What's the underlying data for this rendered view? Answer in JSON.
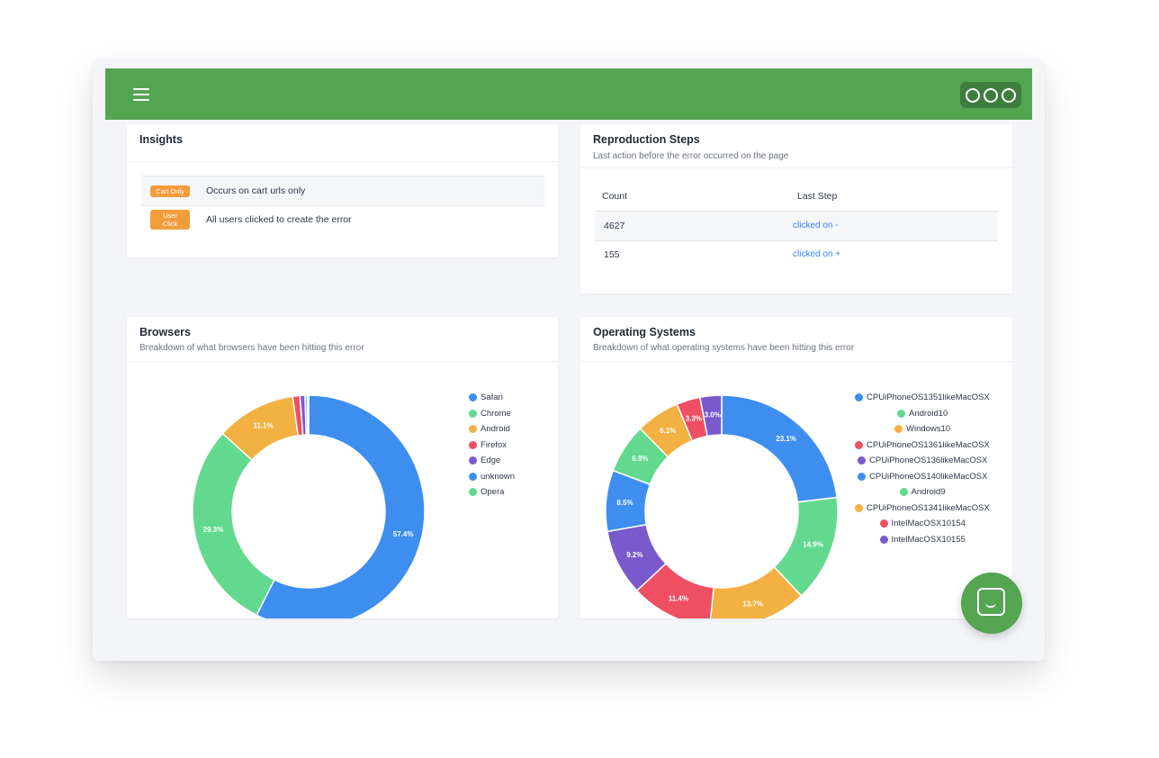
{
  "topbar": {
    "menu_icon": "hamburger-icon",
    "logo_icon": "three-circles-logo-icon",
    "color": "#53a552"
  },
  "insights": {
    "title": "Insights",
    "rows": [
      {
        "badge": "Cart Only",
        "text": "Occurs on cart urls only"
      },
      {
        "badge": "User Click",
        "text": "All users clicked to create the error"
      }
    ]
  },
  "repro": {
    "title": "Reproduction Steps",
    "subtitle": "Last action before the error occurred on the page",
    "columns": [
      "Count",
      "Last Step"
    ],
    "rows": [
      {
        "count": "4627",
        "step": "clicked on -"
      },
      {
        "count": "155",
        "step": "clicked on +"
      }
    ]
  },
  "browsers": {
    "title": "Browsers",
    "subtitle": "Breakdown of what browsers have been hitting this error"
  },
  "os": {
    "title": "Operating Systems",
    "subtitle": "Breakdown of what operating systems have been hitting this error"
  },
  "chat_icon": "chat-bubble-icon",
  "chart_data": [
    {
      "type": "pie",
      "title": "Browsers",
      "categories": [
        "Safari",
        "Chrome",
        "Android",
        "Firefox",
        "Edge",
        "unknown",
        "Opera"
      ],
      "values": [
        57.4,
        29.3,
        11.1,
        1.0,
        0.7,
        0.3,
        0.2
      ],
      "labels": [
        "57.4%",
        "29.3%",
        "11.1%",
        "",
        "",
        "",
        ""
      ],
      "colors": [
        "#3e8ef0",
        "#62d98e",
        "#f2b142",
        "#ee4f63",
        "#7a59cc",
        "#3e8ef0",
        "#62d98e"
      ],
      "legend": "right"
    },
    {
      "type": "pie",
      "title": "Operating Systems",
      "categories": [
        "CPUiPhoneOS1351likeMacOSX",
        "Android10",
        "Windows10",
        "CPUiPhoneOS1361likeMacOSX",
        "CPUiPhoneOS136likeMacOSX",
        "CPUiPhoneOS140likeMacOSX",
        "Android9",
        "CPUiPhoneOS1341likeMacOSX",
        "IntelMacOSX10154",
        "IntelMacOSX10155"
      ],
      "values": [
        23.1,
        14.9,
        13.7,
        11.4,
        9.2,
        8.5,
        6.9,
        6.1,
        3.3,
        3.0
      ],
      "labels": [
        "23.1%",
        "14.9%",
        "13.7%",
        "11.4%",
        "9.2%",
        "8.5%",
        "6.9%",
        "6.1%",
        "3.3%",
        "3.0%"
      ],
      "colors": [
        "#3e8ef0",
        "#62d98e",
        "#f2b142",
        "#ee4f63",
        "#7a59cc",
        "#3e8ef0",
        "#62d98e",
        "#f2b142",
        "#ee4f63",
        "#7a59cc"
      ],
      "legend": "right"
    }
  ]
}
